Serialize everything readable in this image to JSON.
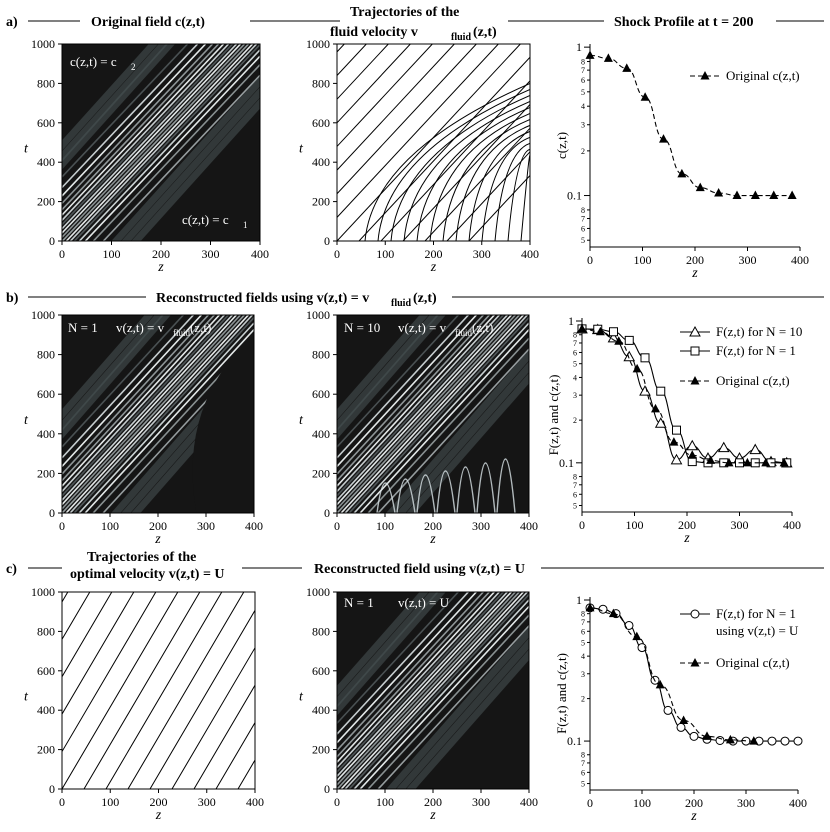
{
  "rows": {
    "a": {
      "label": "a)",
      "titles": [
        "Original field c(z,t)",
        "Trajectories of the",
        "fluid velocity v",
        "fluid",
        "(z,t)",
        "Shock Profile at t = 200"
      ],
      "left_panel_labels": [
        "c(z,t) = c",
        "2",
        "c(z,t) = c",
        "1"
      ]
    },
    "b": {
      "label": "b)",
      "title_main": "Reconstructed fields using v(z,t) = v",
      "title_sub": "fluid",
      "title_end": "(z,t)",
      "panel1_labels": [
        "N = 1",
        "v(z,t) = v",
        "fluid",
        "(z,t)"
      ],
      "panel2_labels": [
        "N = 10",
        "v(z,t) = v",
        "fluid",
        "(z,t)"
      ]
    },
    "c": {
      "label": "c)",
      "titles": [
        "Trajectories of the",
        "optimal velocity v(z,t) = U",
        "Reconstructed field using v(z,t) = U"
      ],
      "panel2_labels": [
        "N = 1",
        "v(z,t) = U"
      ]
    }
  },
  "axis_text": {
    "z": "z",
    "t": "t",
    "c_label": "c(z,t)",
    "fc_label": "F(z,t) and c(z,t)"
  },
  "chart_data": [
    {
      "type": "line",
      "id": "a3",
      "title": "Shock Profile at t = 200",
      "xlabel": "z",
      "ylabel": "c(z,t)",
      "xlim": [
        0,
        400
      ],
      "ylim": [
        0.045,
        1.05
      ],
      "yscale": "log",
      "x_ticks": [
        0,
        100,
        200,
        300,
        400
      ],
      "y_major_ticks": [
        "1",
        "0.1"
      ],
      "y_minor_tick_labels": [
        "8",
        "7",
        "6",
        "5",
        "4",
        "3",
        "2",
        "8",
        "7",
        "6",
        "5"
      ],
      "series": [
        {
          "name": "Original c(z,t)",
          "style": "dashed-filled-triangle",
          "x": [
            0,
            35,
            70,
            105,
            140,
            175,
            210,
            245,
            280,
            315,
            350,
            385
          ],
          "y": [
            0.88,
            0.84,
            0.72,
            0.46,
            0.24,
            0.14,
            0.113,
            0.104,
            0.1,
            0.1,
            0.1,
            0.1
          ]
        }
      ]
    },
    {
      "type": "line",
      "id": "b3",
      "xlabel": "z",
      "ylabel": "F(z,t) and c(z,t)",
      "xlim": [
        0,
        400
      ],
      "ylim": [
        0.045,
        1.05
      ],
      "yscale": "log",
      "x_ticks": [
        0,
        100,
        200,
        300,
        400
      ],
      "y_major_ticks": [
        "1",
        "0.1"
      ],
      "y_minor_tick_labels": [
        "8",
        "7",
        "6",
        "5",
        "4",
        "3",
        "2",
        "8",
        "7",
        "6",
        "5"
      ],
      "series": [
        {
          "name": "F(z,t) for N = 10",
          "style": "solid-open-triangle",
          "x": [
            0,
            30,
            60,
            90,
            120,
            150,
            180,
            210,
            240,
            270,
            300,
            330,
            360,
            390
          ],
          "y": [
            0.88,
            0.87,
            0.76,
            0.56,
            0.32,
            0.19,
            0.105,
            0.132,
            0.108,
            0.128,
            0.108,
            0.124,
            0.102,
            0.1
          ]
        },
        {
          "name": "F(z,t) for N = 1",
          "style": "solid-open-square",
          "x": [
            0,
            30,
            60,
            90,
            120,
            150,
            180,
            210,
            240,
            270,
            300,
            330,
            360,
            390
          ],
          "y": [
            0.88,
            0.875,
            0.84,
            0.73,
            0.55,
            0.32,
            0.17,
            0.102,
            0.1,
            0.1,
            0.1,
            0.1,
            0.1,
            0.1
          ]
        },
        {
          "name": "Original c(z,t)",
          "style": "dashed-filled-triangle",
          "x": [
            0,
            35,
            70,
            105,
            140,
            175,
            210,
            245,
            280,
            315,
            350,
            385
          ],
          "y": [
            0.88,
            0.84,
            0.72,
            0.46,
            0.24,
            0.14,
            0.113,
            0.104,
            0.1,
            0.1,
            0.1,
            0.1
          ]
        }
      ]
    },
    {
      "type": "line",
      "id": "c3",
      "xlabel": "z",
      "ylabel": "F(z,t) and c(z,t)",
      "xlim": [
        0,
        400
      ],
      "ylim": [
        0.045,
        1.05
      ],
      "yscale": "log",
      "x_ticks": [
        0,
        100,
        200,
        300,
        400
      ],
      "y_major_ticks": [
        "1",
        "0.1"
      ],
      "y_minor_tick_labels": [
        "8",
        "7",
        "6",
        "5",
        "4",
        "3",
        "2",
        "8",
        "7",
        "6",
        "5"
      ],
      "series": [
        {
          "name": "F(z,t) for N = 1",
          "name2": "using v(z,t) = U",
          "style": "solid-open-circle",
          "x": [
            0,
            25,
            50,
            75,
            100,
            125,
            150,
            175,
            200,
            225,
            250,
            275,
            300,
            325,
            350,
            375,
            400
          ],
          "y": [
            0.88,
            0.86,
            0.8,
            0.66,
            0.46,
            0.27,
            0.165,
            0.125,
            0.108,
            0.103,
            0.101,
            0.1,
            0.1,
            0.1,
            0.1,
            0.1,
            0.1
          ]
        },
        {
          "name": "Original c(z,t)",
          "style": "dashed-filled-triangle",
          "x": [
            0,
            45,
            90,
            135,
            180,
            225,
            270,
            315
          ],
          "y": [
            0.88,
            0.8,
            0.55,
            0.25,
            0.14,
            0.108,
            0.102,
            0.1
          ]
        }
      ]
    },
    {
      "type": "heatmap",
      "id": "field-panels",
      "xlim": [
        0,
        400
      ],
      "ylim": [
        0,
        1000
      ],
      "x_ticks": [
        0,
        100,
        200,
        300,
        400
      ],
      "y_ticks": [
        0,
        200,
        400,
        600,
        800,
        1000
      ]
    }
  ],
  "colors": {
    "background": "#ffffff",
    "field_dark": "#151515",
    "ink": "#000000"
  }
}
